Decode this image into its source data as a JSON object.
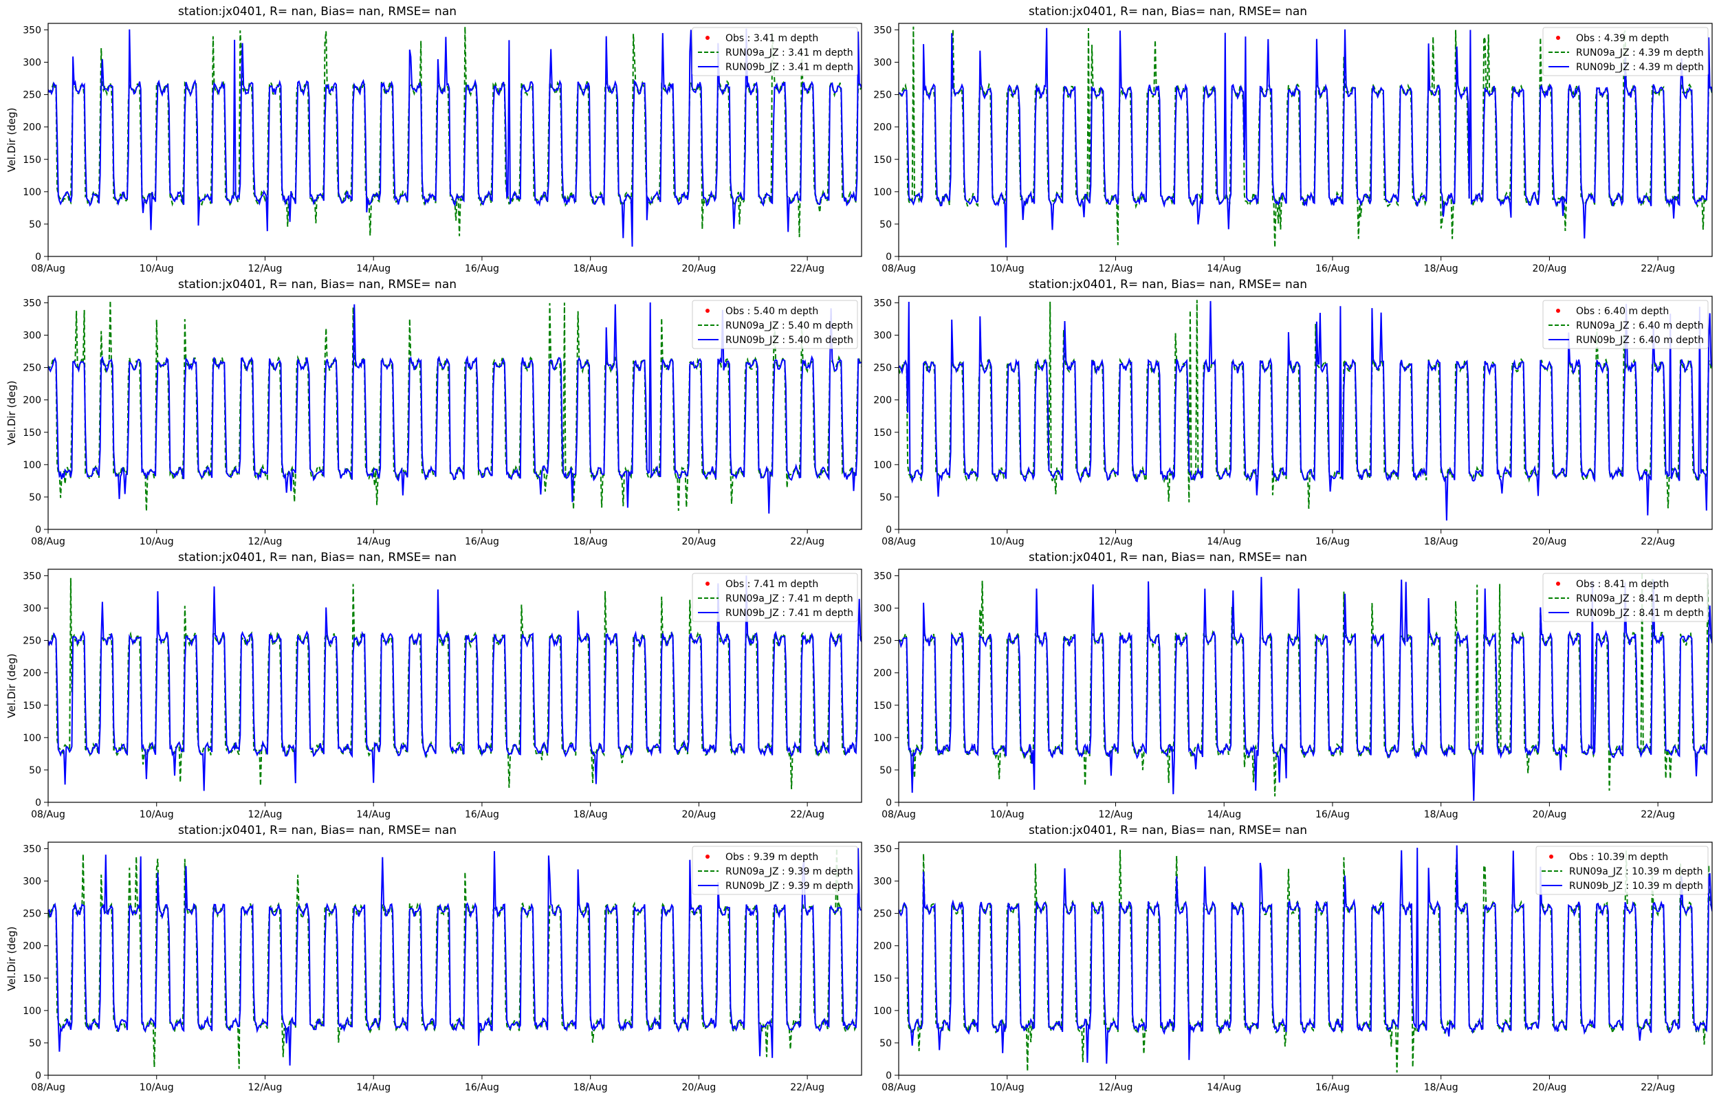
{
  "figure": {
    "background": "#ffffff",
    "colors": {
      "obs": "#ff0000",
      "run09a": "#008000",
      "run09b": "#0000ff"
    }
  },
  "chart_data": [
    {
      "type": "line",
      "title": "station:jx0401, R=    nan, Bias=    nan, RMSE=    nan",
      "ylabel": "Vel.Dir (deg)",
      "xlabel": "",
      "x_ticks": [
        "08/Aug",
        "10/Aug",
        "12/Aug",
        "14/Aug",
        "16/Aug",
        "18/Aug",
        "20/Aug",
        "22/Aug"
      ],
      "x_range": [
        "2023-08-08",
        "2023-08-23"
      ],
      "y_ticks": [
        0,
        50,
        100,
        150,
        200,
        250,
        300,
        350
      ],
      "ylim": [
        0,
        360
      ],
      "legend_position": "top-right",
      "series": [
        {
          "name": "Obs : 3.41 m depth",
          "style": "markers",
          "color": "#ff0000",
          "values": []
        },
        {
          "name": "RUN09a_JZ : 3.41 m depth",
          "style": "dashed",
          "color": "#008000"
        },
        {
          "name": "RUN09b_JZ : 3.41 m depth",
          "style": "solid",
          "color": "#0000ff"
        }
      ],
      "shape": {
        "low": 90,
        "high": 260,
        "seed": 11
      }
    },
    {
      "type": "line",
      "title": "station:jx0401, R=    nan, Bias=    nan, RMSE=    nan",
      "ylabel": "",
      "xlabel": "",
      "x_ticks": [
        "08/Aug",
        "10/Aug",
        "12/Aug",
        "14/Aug",
        "16/Aug",
        "18/Aug",
        "20/Aug",
        "22/Aug"
      ],
      "x_range": [
        "2023-08-08",
        "2023-08-23"
      ],
      "y_ticks": [
        0,
        50,
        100,
        150,
        200,
        250,
        300,
        350
      ],
      "ylim": [
        0,
        360
      ],
      "legend_position": "top-right",
      "series": [
        {
          "name": "Obs : 4.39 m depth",
          "style": "markers",
          "color": "#ff0000",
          "values": []
        },
        {
          "name": "RUN09a_JZ : 4.39 m depth",
          "style": "dashed",
          "color": "#008000"
        },
        {
          "name": "RUN09b_JZ : 4.39 m depth",
          "style": "solid",
          "color": "#0000ff"
        }
      ],
      "shape": {
        "low": 88,
        "high": 255,
        "seed": 23
      }
    },
    {
      "type": "line",
      "title": "station:jx0401, R=    nan, Bias=    nan, RMSE=    nan",
      "ylabel": "Vel.Dir (deg)",
      "xlabel": "",
      "x_ticks": [
        "08/Aug",
        "10/Aug",
        "12/Aug",
        "14/Aug",
        "16/Aug",
        "18/Aug",
        "20/Aug",
        "22/Aug"
      ],
      "x_range": [
        "2023-08-08",
        "2023-08-23"
      ],
      "y_ticks": [
        0,
        50,
        100,
        150,
        200,
        250,
        300,
        350
      ],
      "ylim": [
        0,
        360
      ],
      "legend_position": "top-right",
      "series": [
        {
          "name": "Obs : 5.40 m depth",
          "style": "markers",
          "color": "#ff0000",
          "values": []
        },
        {
          "name": "RUN09a_JZ : 5.40 m depth",
          "style": "dashed",
          "color": "#008000"
        },
        {
          "name": "RUN09b_JZ : 5.40 m depth",
          "style": "solid",
          "color": "#0000ff"
        }
      ],
      "shape": {
        "low": 87,
        "high": 255,
        "seed": 37
      }
    },
    {
      "type": "line",
      "title": "station:jx0401, R=    nan, Bias=    nan, RMSE=    nan",
      "ylabel": "",
      "xlabel": "",
      "x_ticks": [
        "08/Aug",
        "10/Aug",
        "12/Aug",
        "14/Aug",
        "16/Aug",
        "18/Aug",
        "20/Aug",
        "22/Aug"
      ],
      "x_range": [
        "2023-08-08",
        "2023-08-23"
      ],
      "y_ticks": [
        0,
        50,
        100,
        150,
        200,
        250,
        300,
        350
      ],
      "ylim": [
        0,
        360
      ],
      "legend_position": "top-right",
      "series": [
        {
          "name": "Obs : 6.40 m depth",
          "style": "markers",
          "color": "#ff0000",
          "values": []
        },
        {
          "name": "RUN09a_JZ : 6.40 m depth",
          "style": "dashed",
          "color": "#008000"
        },
        {
          "name": "RUN09b_JZ : 6.40 m depth",
          "style": "solid",
          "color": "#0000ff"
        }
      ],
      "shape": {
        "low": 85,
        "high": 252,
        "seed": 41
      }
    },
    {
      "type": "line",
      "title": "station:jx0401, R=    nan, Bias=    nan, RMSE=    nan",
      "ylabel": "Vel.Dir (deg)",
      "xlabel": "",
      "x_ticks": [
        "08/Aug",
        "10/Aug",
        "12/Aug",
        "14/Aug",
        "16/Aug",
        "18/Aug",
        "20/Aug",
        "22/Aug"
      ],
      "x_range": [
        "2023-08-08",
        "2023-08-23"
      ],
      "y_ticks": [
        0,
        50,
        100,
        150,
        200,
        250,
        300,
        350
      ],
      "ylim": [
        0,
        360
      ],
      "legend_position": "top-right",
      "series": [
        {
          "name": "Obs : 7.41 m depth",
          "style": "markers",
          "color": "#ff0000",
          "values": []
        },
        {
          "name": "RUN09a_JZ : 7.41 m depth",
          "style": "dashed",
          "color": "#008000"
        },
        {
          "name": "RUN09b_JZ : 7.41 m depth",
          "style": "solid",
          "color": "#0000ff"
        }
      ],
      "shape": {
        "low": 82,
        "high": 252,
        "seed": 53
      }
    },
    {
      "type": "line",
      "title": "station:jx0401, R=    nan, Bias=    nan, RMSE=    nan",
      "ylabel": "",
      "xlabel": "",
      "x_ticks": [
        "08/Aug",
        "10/Aug",
        "12/Aug",
        "14/Aug",
        "16/Aug",
        "18/Aug",
        "20/Aug",
        "22/Aug"
      ],
      "x_range": [
        "2023-08-08",
        "2023-08-23"
      ],
      "y_ticks": [
        0,
        50,
        100,
        150,
        200,
        250,
        300,
        350
      ],
      "ylim": [
        0,
        360
      ],
      "legend_position": "top-right",
      "series": [
        {
          "name": "Obs : 8.41 m depth",
          "style": "markers",
          "color": "#ff0000",
          "values": []
        },
        {
          "name": "RUN09a_JZ : 8.41 m depth",
          "style": "dashed",
          "color": "#008000"
        },
        {
          "name": "RUN09b_JZ : 8.41 m depth",
          "style": "solid",
          "color": "#0000ff"
        }
      ],
      "shape": {
        "low": 80,
        "high": 252,
        "seed": 67
      }
    },
    {
      "type": "line",
      "title": "station:jx0401, R=    nan, Bias=    nan, RMSE=    nan",
      "ylabel": "Vel.Dir (deg)",
      "xlabel": "",
      "x_ticks": [
        "08/Aug",
        "10/Aug",
        "12/Aug",
        "14/Aug",
        "16/Aug",
        "18/Aug",
        "20/Aug",
        "22/Aug"
      ],
      "x_range": [
        "2023-08-08",
        "2023-08-23"
      ],
      "y_ticks": [
        0,
        50,
        100,
        150,
        200,
        250,
        300,
        350
      ],
      "ylim": [
        0,
        360
      ],
      "legend_position": "top-right",
      "series": [
        {
          "name": "Obs : 9.39 m depth",
          "style": "markers",
          "color": "#ff0000",
          "values": []
        },
        {
          "name": "RUN09a_JZ : 9.39 m depth",
          "style": "dashed",
          "color": "#008000"
        },
        {
          "name": "RUN09b_JZ : 9.39 m depth",
          "style": "solid",
          "color": "#0000ff"
        }
      ],
      "shape": {
        "low": 78,
        "high": 255,
        "seed": 79
      }
    },
    {
      "type": "line",
      "title": "station:jx0401, R=    nan, Bias=    nan, RMSE=    nan",
      "ylabel": "",
      "xlabel": "",
      "x_ticks": [
        "08/Aug",
        "10/Aug",
        "12/Aug",
        "14/Aug",
        "16/Aug",
        "18/Aug",
        "20/Aug",
        "22/Aug"
      ],
      "x_range": [
        "2023-08-08",
        "2023-08-23"
      ],
      "y_ticks": [
        0,
        50,
        100,
        150,
        200,
        250,
        300,
        350
      ],
      "ylim": [
        0,
        360
      ],
      "legend_position": "top-right",
      "series": [
        {
          "name": "Obs : 10.39 m depth",
          "style": "markers",
          "color": "#ff0000",
          "values": []
        },
        {
          "name": "RUN09a_JZ : 10.39 m depth",
          "style": "dashed",
          "color": "#008000"
        },
        {
          "name": "RUN09b_JZ : 10.39 m depth",
          "style": "solid",
          "color": "#0000ff"
        }
      ],
      "shape": {
        "low": 76,
        "high": 258,
        "seed": 97
      }
    }
  ]
}
